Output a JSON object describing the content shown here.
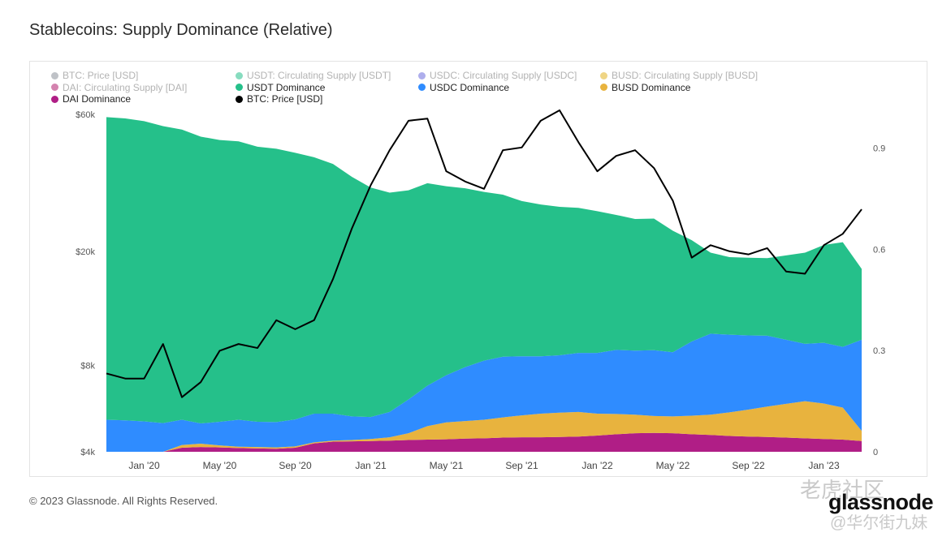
{
  "title": "Stablecoins: Supply Dominance (Relative)",
  "footer": "© 2023 Glassnode. All Rights Reserved.",
  "brand": "glassnode",
  "watermark_top": "老虎社区",
  "watermark_bottom": "@华尔街九妹",
  "legend": [
    {
      "label": "BTC: Price [USD]",
      "color": "#8a8f99",
      "faded": true
    },
    {
      "label": "USDT: Circulating Supply [USDT]",
      "color": "#25c08a",
      "faded": true
    },
    {
      "label": "USDC: Circulating Supply [USDC]",
      "color": "#6b6bdc",
      "faded": true
    },
    {
      "label": "BUSD: Circulating Supply [BUSD]",
      "color": "#e2b320",
      "faded": true
    },
    {
      "label": "DAI: Circulating Supply [DAI]",
      "color": "#b01e6e",
      "faded": true
    },
    {
      "label": "USDT Dominance",
      "color": "#25c08a",
      "faded": false
    },
    {
      "label": "USDC Dominance",
      "color": "#2f8cff",
      "faded": false
    },
    {
      "label": "BUSD Dominance",
      "color": "#e8b33e",
      "faded": false
    },
    {
      "label": "DAI Dominance",
      "color": "#b01e86",
      "faded": false
    },
    {
      "label": "BTC: Price [USD]",
      "color": "#000000",
      "faded": false
    }
  ],
  "chart_data": {
    "type": "area",
    "title": "Stablecoins: Supply Dominance (Relative)",
    "x_ticks": [
      "Jan '20",
      "May '20",
      "Sep '20",
      "Jan '21",
      "May '21",
      "Sep '21",
      "Jan '22",
      "May '22",
      "Sep '22",
      "Jan '23"
    ],
    "x": [
      "Nov '19",
      "Dec '19",
      "Jan '20",
      "Feb '20",
      "Mar '20",
      "Apr '20",
      "May '20",
      "Jun '20",
      "Jul '20",
      "Aug '20",
      "Sep '20",
      "Oct '20",
      "Nov '20",
      "Dec '20",
      "Jan '21",
      "Feb '21",
      "Mar '21",
      "Apr '21",
      "May '21",
      "Jun '21",
      "Jul '21",
      "Aug '21",
      "Sep '21",
      "Oct '21",
      "Nov '21",
      "Dec '21",
      "Jan '22",
      "Feb '22",
      "Mar '22",
      "Apr '22",
      "May '22",
      "Jun '22",
      "Jul '22",
      "Aug '22",
      "Sep '22",
      "Oct '22",
      "Nov '22",
      "Dec '22",
      "Jan '23",
      "Feb '23",
      "Mar '23"
    ],
    "left_axis": {
      "label": "",
      "scale": "log",
      "ticks": [
        "$4k",
        "$8k",
        "$20k",
        "$60k"
      ],
      "tick_values": [
        4000,
        8000,
        20000,
        60000
      ]
    },
    "right_axis": {
      "label": "",
      "scale": "linear",
      "ticks": [
        "0",
        "0.3",
        "0.6",
        "0.9"
      ],
      "range": [
        0,
        1
      ]
    },
    "series": [
      {
        "name": "DAI Dominance",
        "color": "#b01e86",
        "values": [
          0.0,
          0.0,
          0.0,
          0.0,
          0.012,
          0.014,
          0.013,
          0.011,
          0.01,
          0.009,
          0.012,
          0.025,
          0.03,
          0.031,
          0.032,
          0.033,
          0.035,
          0.036,
          0.037,
          0.039,
          0.04,
          0.042,
          0.043,
          0.043,
          0.044,
          0.045,
          0.048,
          0.052,
          0.055,
          0.056,
          0.055,
          0.052,
          0.05,
          0.047,
          0.045,
          0.044,
          0.042,
          0.04,
          0.038,
          0.036,
          0.032
        ]
      },
      {
        "name": "BUSD Dominance",
        "color": "#e8b33e",
        "values": [
          0.0,
          0.0,
          0.0,
          0.0,
          0.008,
          0.01,
          0.006,
          0.004,
          0.004,
          0.004,
          0.004,
          0.003,
          0.003,
          0.004,
          0.006,
          0.01,
          0.02,
          0.04,
          0.05,
          0.052,
          0.055,
          0.06,
          0.065,
          0.07,
          0.072,
          0.073,
          0.065,
          0.06,
          0.055,
          0.05,
          0.05,
          0.055,
          0.06,
          0.07,
          0.08,
          0.09,
          0.1,
          0.11,
          0.105,
          0.095,
          0.03
        ]
      },
      {
        "name": "USDC Dominance",
        "color": "#2f8cff",
        "values": [
          0.095,
          0.093,
          0.09,
          0.085,
          0.075,
          0.06,
          0.07,
          0.08,
          0.075,
          0.075,
          0.08,
          0.085,
          0.08,
          0.07,
          0.065,
          0.075,
          0.1,
          0.12,
          0.14,
          0.16,
          0.175,
          0.18,
          0.175,
          0.17,
          0.17,
          0.175,
          0.18,
          0.19,
          0.19,
          0.195,
          0.19,
          0.22,
          0.24,
          0.23,
          0.22,
          0.21,
          0.19,
          0.17,
          0.18,
          0.18,
          0.27
        ]
      },
      {
        "name": "USDT Dominance",
        "color": "#25c08a",
        "values": [
          0.897,
          0.895,
          0.89,
          0.88,
          0.86,
          0.85,
          0.835,
          0.825,
          0.815,
          0.81,
          0.79,
          0.76,
          0.74,
          0.71,
          0.68,
          0.65,
          0.62,
          0.6,
          0.56,
          0.53,
          0.5,
          0.48,
          0.46,
          0.45,
          0.44,
          0.43,
          0.42,
          0.4,
          0.39,
          0.39,
          0.36,
          0.3,
          0.24,
          0.23,
          0.23,
          0.23,
          0.25,
          0.27,
          0.29,
          0.31,
          0.21
        ]
      },
      {
        "name": "BTC: Price [USD]",
        "color": "#000000",
        "axis": "left",
        "values": [
          7500,
          7200,
          7200,
          9500,
          6200,
          7000,
          9000,
          9500,
          9200,
          11500,
          10700,
          11500,
          16000,
          24000,
          34000,
          45000,
          57000,
          58000,
          38000,
          35000,
          33000,
          45000,
          46000,
          57000,
          62000,
          48000,
          38000,
          43000,
          45000,
          39000,
          30000,
          19000,
          21000,
          20000,
          19500,
          20500,
          17000,
          16700,
          21000,
          23000,
          28000
        ]
      }
    ]
  }
}
